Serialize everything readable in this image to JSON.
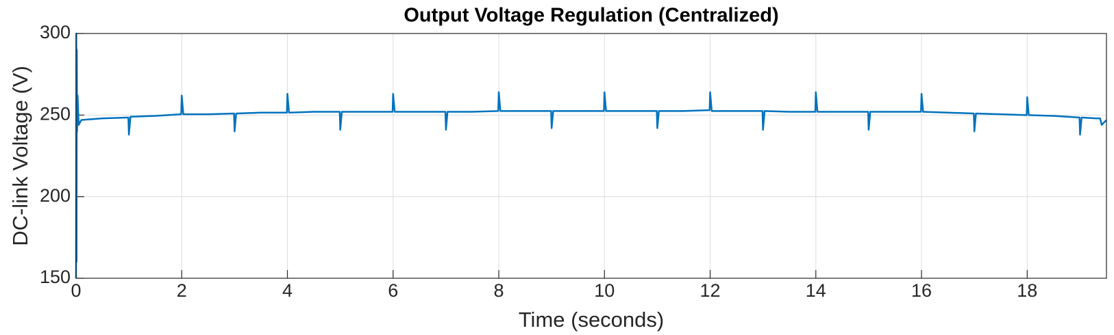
{
  "chart_data": {
    "type": "line",
    "title": "Output Voltage Regulation (Centralized)",
    "xlabel": "Time (seconds)",
    "ylabel": "DC-link Voltage (V)",
    "x": [
      0,
      0.005,
      0.01,
      0.015,
      0.02,
      0.03,
      0.05,
      0.1,
      0.5,
      0.99,
      1,
      1.03,
      1.5,
      1.99,
      2,
      2.03,
      2.5,
      2.99,
      3,
      3.03,
      3.5,
      3.99,
      4,
      4.03,
      4.5,
      4.99,
      5,
      5.03,
      5.5,
      5.99,
      6,
      6.03,
      6.5,
      6.99,
      7,
      7.03,
      7.5,
      7.99,
      8,
      8.03,
      8.5,
      8.99,
      9,
      9.03,
      9.5,
      9.99,
      10,
      10.03,
      10.5,
      10.99,
      11,
      11.03,
      11.5,
      11.99,
      12,
      12.03,
      12.5,
      12.99,
      13,
      13.03,
      13.5,
      13.99,
      14,
      14.03,
      14.5,
      14.99,
      15,
      15.03,
      15.5,
      15.99,
      16,
      16.03,
      16.5,
      16.99,
      17,
      17.03,
      17.5,
      17.99,
      18,
      18.03,
      18.5,
      18.99,
      19,
      19.03,
      19.3,
      19.38,
      19.41,
      19.5
    ],
    "values": [
      150,
      300,
      160,
      290,
      240,
      262,
      244,
      247,
      248,
      248.5,
      238,
      249,
      249.5,
      250.5,
      262,
      250.5,
      250.5,
      251,
      240,
      251,
      251.5,
      251.5,
      263,
      251.5,
      252,
      252,
      241,
      252,
      252,
      252,
      263,
      252,
      252,
      252,
      241,
      252,
      252,
      252.5,
      264,
      252.5,
      252.5,
      252.5,
      242,
      252.5,
      252.5,
      252.5,
      264,
      252.5,
      252.5,
      252.5,
      242,
      252.5,
      252.5,
      253,
      264,
      252.5,
      252.5,
      252.5,
      241,
      252.5,
      252,
      252,
      264,
      252,
      252,
      252,
      241,
      252,
      252,
      252,
      263,
      252,
      251.5,
      251,
      240,
      251,
      250.5,
      250,
      261,
      250,
      249.5,
      248.5,
      238,
      248.5,
      248,
      248,
      244,
      247
    ],
    "color": "#0072bd",
    "xlim": [
      0,
      19.5
    ],
    "xticks": [
      0,
      2,
      4,
      6,
      8,
      10,
      12,
      14,
      16,
      18
    ],
    "ylim": [
      150,
      300
    ],
    "yticks": [
      150,
      200,
      250,
      300
    ],
    "grid": true
  }
}
